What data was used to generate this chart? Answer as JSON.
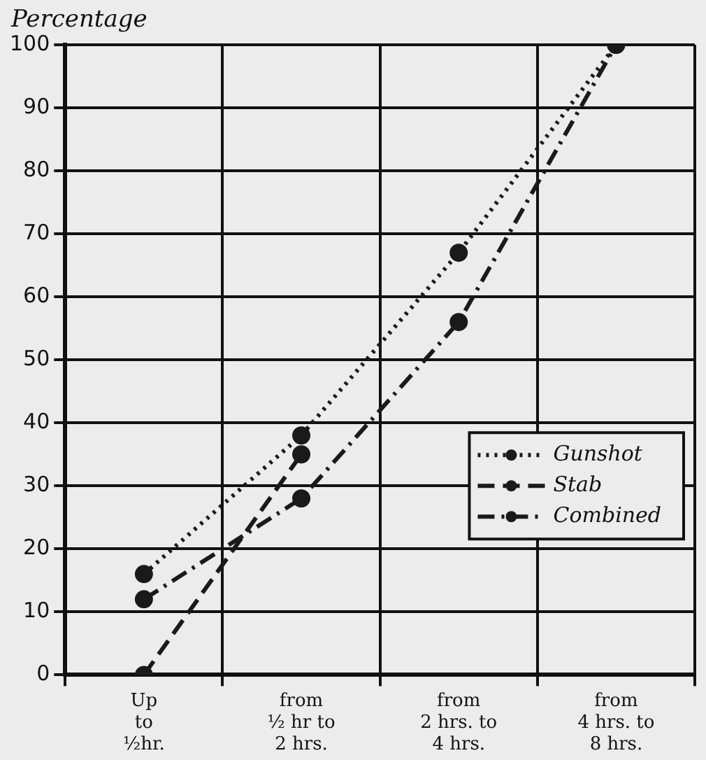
{
  "chart_data": {
    "type": "line",
    "ylabel": "Percentage",
    "categories": [
      "Up\nto\n½hr.",
      "from\n½ hr to\n2 hrs.",
      "from\n2 hrs. to\n4 hrs.",
      "from\n4 hrs. to\n8 hrs."
    ],
    "series": [
      {
        "name": "Gunshot",
        "color": "#1a1a1a",
        "line_style": "dotted",
        "values": [
          16,
          38,
          67,
          100
        ]
      },
      {
        "name": "Stab",
        "color": "#1a1a1a",
        "line_style": "dashed",
        "values": [
          0,
          35,
          null,
          null
        ]
      },
      {
        "name": "Combined",
        "color": "#1a1a1a",
        "line_style": "dashdot",
        "values": [
          12,
          28,
          56,
          100
        ]
      }
    ],
    "ylim": [
      0,
      100
    ],
    "yticks": [
      0,
      10,
      20,
      30,
      40,
      50,
      60,
      70,
      80,
      90,
      100
    ],
    "grid": true,
    "legend": "right",
    "marker": "circle"
  }
}
